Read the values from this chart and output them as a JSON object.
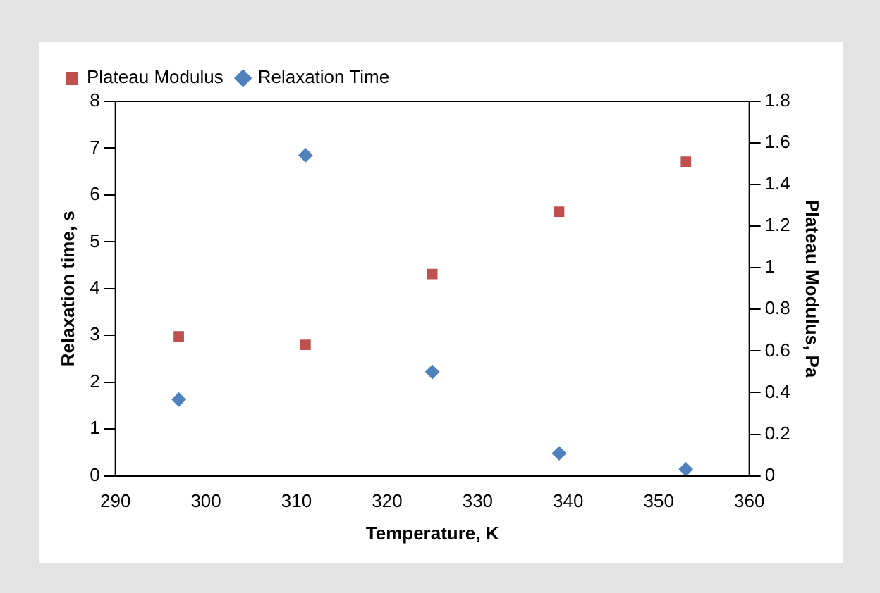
{
  "chart_data": {
    "type": "scatter",
    "xlabel": "Temperature, K",
    "ylabel": "Relaxation time, s",
    "y2label": "Plateau Modulus, Pa",
    "x": [
      297,
      311,
      325,
      339,
      353
    ],
    "series": [
      {
        "name": "Plateau Modulus",
        "color": "#c0504d",
        "marker": "square",
        "axis": "y2",
        "values": [
          0.67,
          0.63,
          0.97,
          1.27,
          1.51
        ]
      },
      {
        "name": "Relaxation Time",
        "color": "#4f81bd",
        "marker": "diamond",
        "values": [
          1.63,
          6.85,
          2.22,
          0.48,
          0.14
        ]
      }
    ],
    "xlim": [
      290,
      360
    ],
    "xticks": [
      290,
      300,
      310,
      320,
      330,
      340,
      350,
      360
    ],
    "ylim": [
      0,
      8
    ],
    "yticks": [
      0,
      1,
      2,
      3,
      4,
      5,
      6,
      7,
      8
    ],
    "y2lim": [
      0,
      1.8
    ],
    "y2ticks": [
      0,
      0.2,
      0.4,
      0.6,
      0.8,
      1,
      1.2,
      1.4,
      1.6,
      1.8
    ],
    "grid": false,
    "legend": "top left"
  }
}
